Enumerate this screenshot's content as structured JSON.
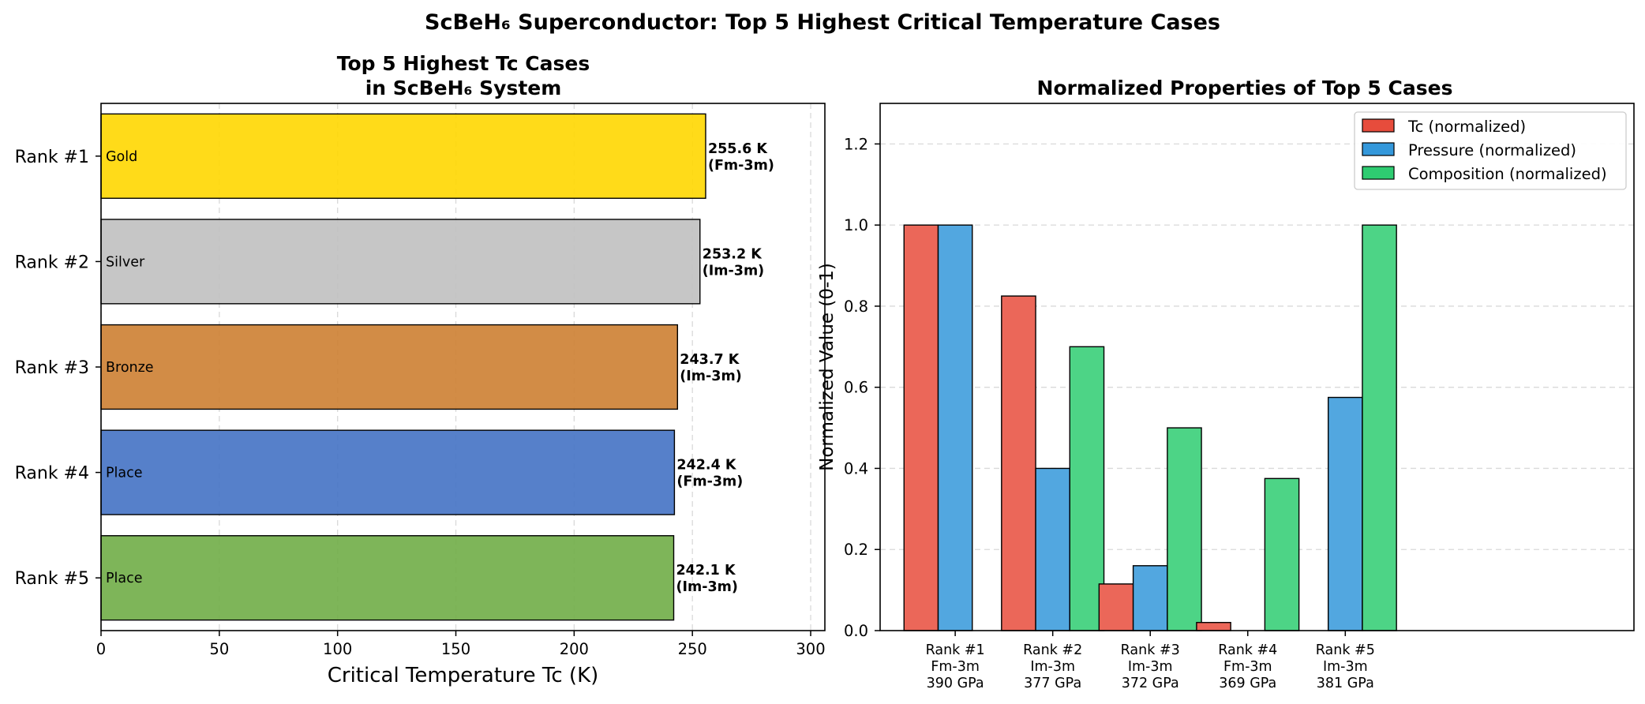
{
  "suptitle": "ScBeH₆ Superconductor: Top 5 Highest Critical Temperature Cases",
  "chart_data": [
    {
      "type": "bar",
      "orientation": "horizontal",
      "title_lines": [
        "Top 5 Highest Tc Cases",
        "in ScBeH₆ System"
      ],
      "xlabel": "Critical Temperature Tc (K)",
      "xlim": [
        0,
        306
      ],
      "xticks": [
        0,
        50,
        100,
        150,
        200,
        250,
        300
      ],
      "grid": "x",
      "bars": [
        {
          "label": "Rank #1",
          "value": 255.6,
          "value_label": "255.6 K",
          "structure_label": "(Fm-3m)",
          "medal": "Gold",
          "color": "#FFD700"
        },
        {
          "label": "Rank #2",
          "value": 253.2,
          "value_label": "253.2 K",
          "structure_label": "(Im-3m)",
          "medal": "Silver",
          "color": "#C0C0C0"
        },
        {
          "label": "Rank #3",
          "value": 243.7,
          "value_label": "243.7 K",
          "structure_label": "(Im-3m)",
          "medal": "Bronze",
          "color": "#CD7F32"
        },
        {
          "label": "Rank #4",
          "value": 242.4,
          "value_label": "242.4 K",
          "structure_label": "(Fm-3m)",
          "medal": "Place",
          "color": "#4472C4"
        },
        {
          "label": "Rank #5",
          "value": 242.1,
          "value_label": "242.1 K",
          "structure_label": "(Im-3m)",
          "medal": "Place",
          "color": "#70AD47"
        }
      ]
    },
    {
      "type": "bar",
      "title": "Normalized Properties of Top 5 Cases",
      "ylabel": "Normalized Value (0-1)",
      "ylim": [
        0,
        1.3
      ],
      "yticks": [
        "0.0",
        "0.2",
        "0.4",
        "0.6",
        "0.8",
        "1.0",
        "1.2"
      ],
      "grid": "y",
      "legend_position": "top-right",
      "categories": [
        [
          "Rank #1",
          "Fm-3m",
          "390 GPa"
        ],
        [
          "Rank #2",
          "Im-3m",
          "377 GPa"
        ],
        [
          "Rank #3",
          "Im-3m",
          "372 GPa"
        ],
        [
          "Rank #4",
          "Fm-3m",
          "369 GPa"
        ],
        [
          "Rank #5",
          "Im-3m",
          "381 GPa"
        ]
      ],
      "series": [
        {
          "name": "Tc (normalized)",
          "color": "#E74C3C",
          "values": [
            1.0,
            0.825,
            0.115,
            0.02,
            0.0
          ]
        },
        {
          "name": "Pressure (normalized)",
          "color": "#3498DB",
          "values": [
            1.0,
            0.4,
            0.16,
            0.0,
            0.575
          ]
        },
        {
          "name": "Composition (normalized)",
          "color": "#2ECC71",
          "values": [
            0.0,
            0.7,
            0.5,
            0.375,
            1.0
          ]
        }
      ]
    }
  ]
}
